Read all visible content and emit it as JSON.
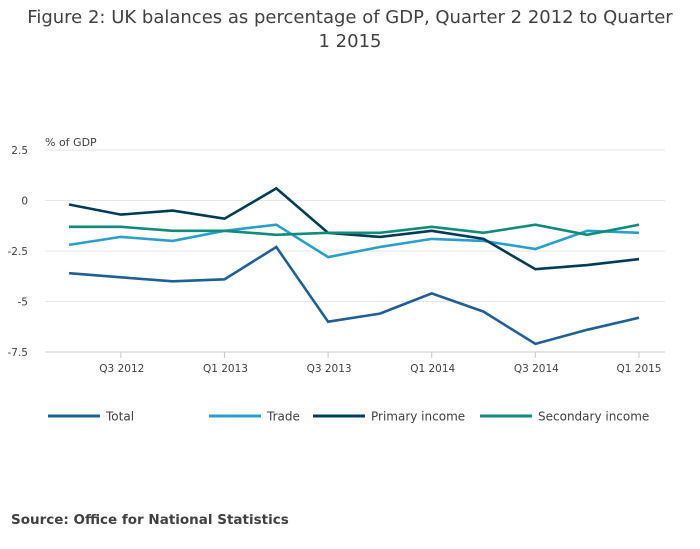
{
  "chart_data": {
    "type": "line",
    "title": "Figure 2: UK balances as percentage of GDP, Quarter 2 2012 to Quarter 1 2015",
    "ylabel": "% of GDP",
    "xlabel": "",
    "ylim": [
      -7.5,
      2.5
    ],
    "yticks": [
      2.5,
      0,
      -2.5,
      -5,
      -7.5
    ],
    "ytick_labels": [
      "2.5",
      "0",
      "-2.5",
      "-5",
      "-7.5"
    ],
    "categories": [
      "Q2 2012",
      "Q3 2012",
      "Q4 2012",
      "Q1 2013",
      "Q2 2013",
      "Q3 2013",
      "Q4 2013",
      "Q1 2014",
      "Q2 2014",
      "Q3 2014",
      "Q4 2014",
      "Q1 2015"
    ],
    "xtick_labels": [
      {
        "index": 1,
        "label": "Q3 2012"
      },
      {
        "index": 3,
        "label": "Q1 2013"
      },
      {
        "index": 5,
        "label": "Q3 2013"
      },
      {
        "index": 7,
        "label": "Q1 2014"
      },
      {
        "index": 9,
        "label": "Q3 2014"
      },
      {
        "index": 11,
        "label": "Q1 2015"
      }
    ],
    "grid": true,
    "legend_position": "bottom",
    "series": [
      {
        "name": "Total",
        "color": "#206095",
        "values": [
          -3.6,
          -3.8,
          -4.0,
          -3.9,
          -2.3,
          -6.0,
          -5.6,
          -4.6,
          -5.5,
          -7.1,
          -6.4,
          -5.8
        ]
      },
      {
        "name": "Trade",
        "color": "#27a0cc",
        "values": [
          -2.2,
          -1.8,
          -2.0,
          -1.5,
          -1.2,
          -2.8,
          -2.3,
          -1.9,
          -2.0,
          -2.4,
          -1.5,
          -1.6
        ]
      },
      {
        "name": "Primary income",
        "color": "#003c57",
        "values": [
          -0.2,
          -0.7,
          -0.5,
          -0.9,
          0.6,
          -1.6,
          -1.8,
          -1.5,
          -1.9,
          -3.4,
          -3.2,
          -2.9
        ]
      },
      {
        "name": "Secondary income",
        "color": "#118c7b",
        "values": [
          -1.3,
          -1.3,
          -1.5,
          -1.5,
          -1.7,
          -1.6,
          -1.6,
          -1.3,
          -1.6,
          -1.2,
          -1.7,
          -1.2
        ]
      }
    ]
  },
  "footer": {
    "source": "Source: Office for National Statistics"
  }
}
